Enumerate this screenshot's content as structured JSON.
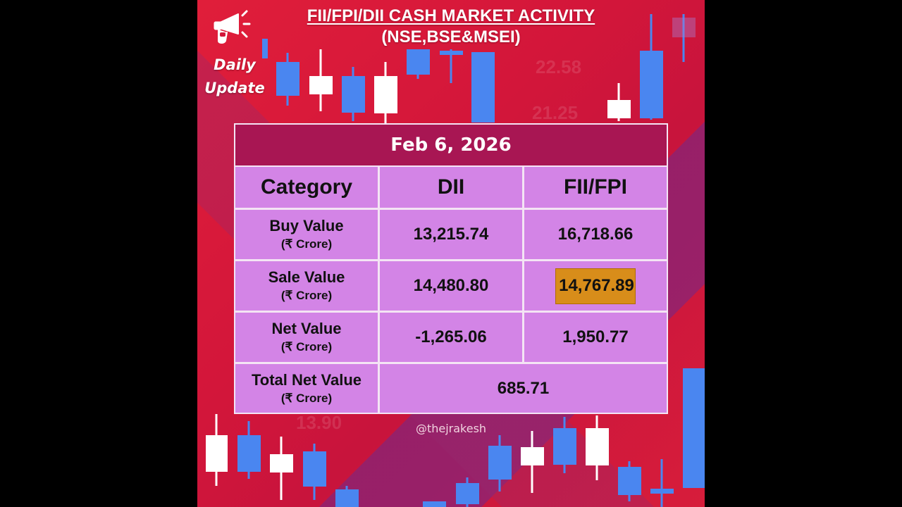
{
  "header": {
    "title_line1": "FII/FPI/DII CASH MARKET ACTIVITY",
    "title_line2": "(NSE,BSE&MSEI)",
    "badge_line1": "Daily",
    "badge_line2": "Update"
  },
  "background_numbers": [
    "22.58",
    "21.25",
    "13.90"
  ],
  "table": {
    "date": "Feb 6, 2026",
    "columns": [
      "Category",
      "DII",
      "FII/FPI"
    ],
    "rows": [
      {
        "label": "Buy Value",
        "unit": "(₹ Crore)",
        "dii": "13,215.74",
        "fii": "16,718.66"
      },
      {
        "label": "Sale Value",
        "unit": "(₹ Crore)",
        "dii": "14,480.80",
        "fii": "14,767.89"
      },
      {
        "label": "Net Value",
        "unit": "(₹ Crore)",
        "dii": "-1,265.06",
        "fii": "1,950.77"
      }
    ],
    "total": {
      "label": "Total Net Value",
      "unit": "(₹ Crore)",
      "value": "685.71"
    }
  },
  "footer": {
    "handle": "@thejrakesh"
  },
  "colors": {
    "background": "#d3163a",
    "date_bar": "#a81653",
    "cell": "#d384e6",
    "highlight": "#d88d1a",
    "candle_blue": "#4a86f0",
    "candle_white": "#ffffff"
  },
  "icons": {
    "megaphone": "megaphone-hand-icon"
  }
}
